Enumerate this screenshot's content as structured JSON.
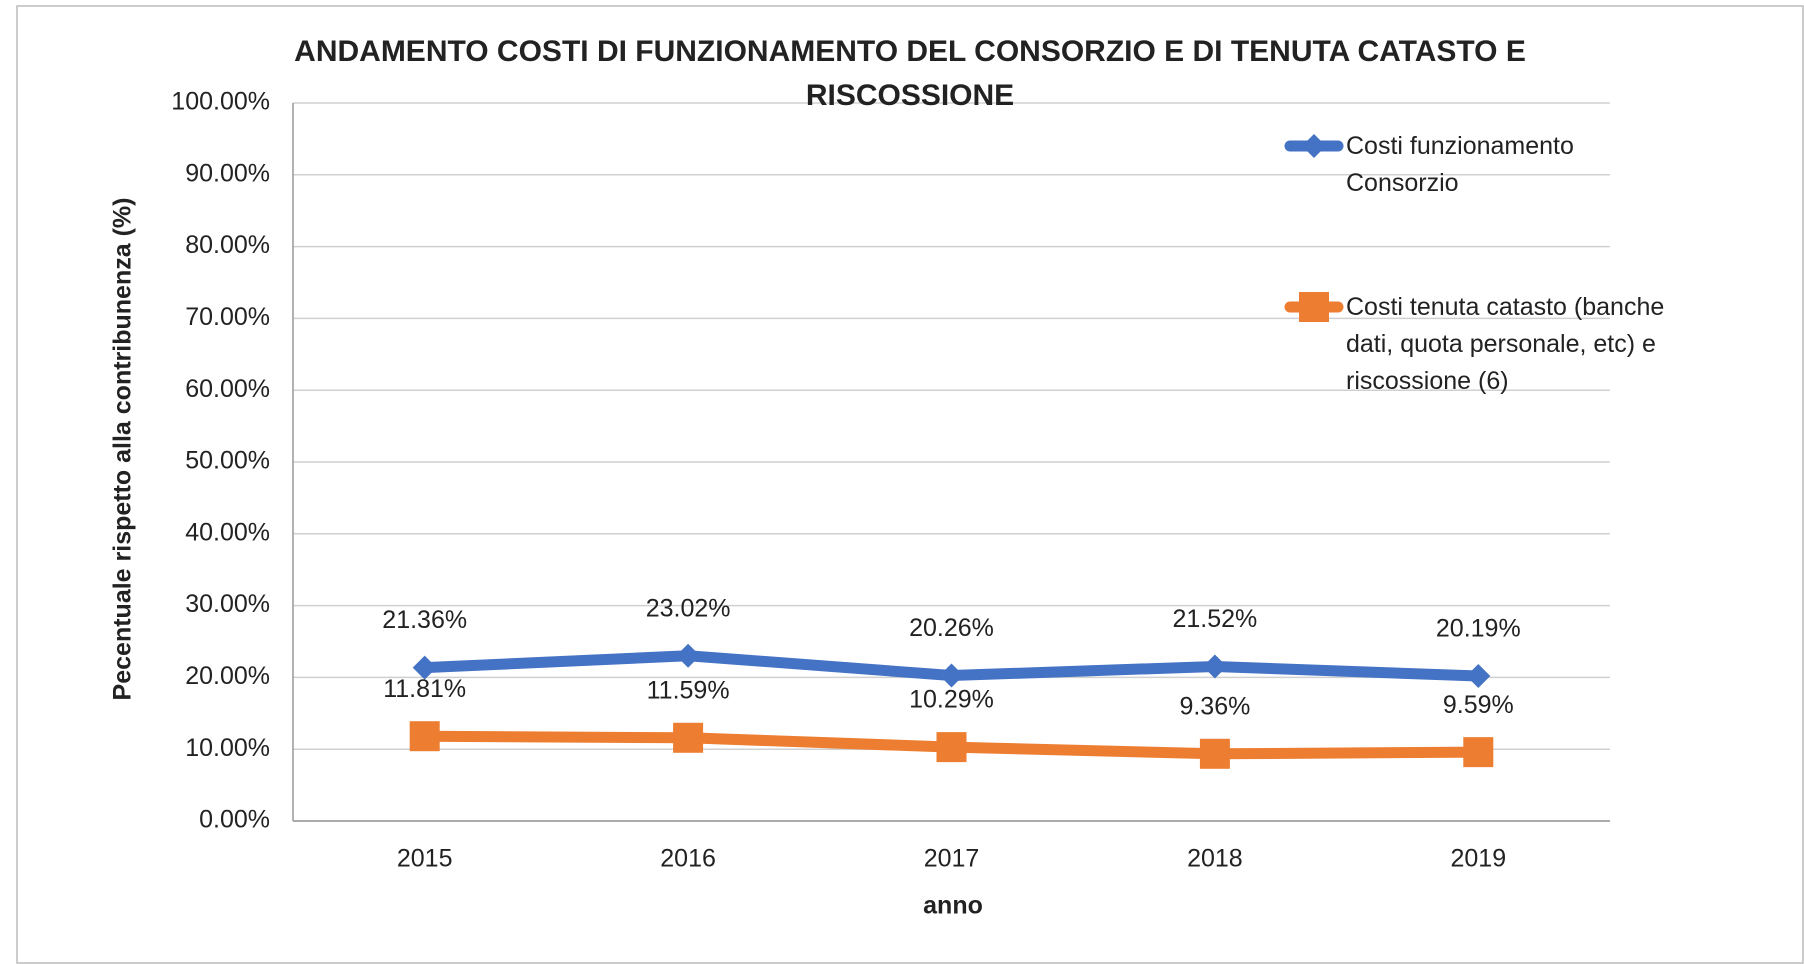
{
  "chart_data": {
    "type": "line",
    "title": "ANDAMENTO COSTI DI FUNZIONAMENTO DEL CONSORZIO E DI TENUTA CATASTO E RISCOSSIONE",
    "x_label": "anno",
    "y_label": "Pecentuale rispetto alla contribunenza (%)",
    "categories": [
      "2015",
      "2016",
      "2017",
      "2018",
      "2019"
    ],
    "series": [
      {
        "name": "Costi funzionamento Consorzio",
        "color": "#4472c4",
        "marker": "diamond",
        "values": [
          21.36,
          23.02,
          20.26,
          21.52,
          20.19
        ],
        "value_labels": [
          "21.36%",
          "23.02%",
          "20.26%",
          "21.52%",
          "20.19%"
        ]
      },
      {
        "name": "Costi tenuta catasto (banche dati, quota personale, etc) e riscossione (6)",
        "color": "#ed7d31",
        "marker": "square",
        "values": [
          11.81,
          11.59,
          10.29,
          9.36,
          9.59
        ],
        "value_labels": [
          "11.81%",
          "11.59%",
          "10.29%",
          "9.36%",
          "9.59%"
        ]
      }
    ],
    "ylim": [
      0,
      100
    ],
    "yticks": [
      {
        "value": 0,
        "label": "0.00%"
      },
      {
        "value": 10,
        "label": "10.00%"
      },
      {
        "value": 20,
        "label": "20.00%"
      },
      {
        "value": 30,
        "label": "30.00%"
      },
      {
        "value": 40,
        "label": "40.00%"
      },
      {
        "value": 50,
        "label": "50.00%"
      },
      {
        "value": 60,
        "label": "60.00%"
      },
      {
        "value": 70,
        "label": "70.00%"
      },
      {
        "value": 80,
        "label": "80.00%"
      },
      {
        "value": 90,
        "label": "90.00%"
      },
      {
        "value": 100,
        "label": "100.00%"
      }
    ],
    "grid": true,
    "legend": "right"
  }
}
